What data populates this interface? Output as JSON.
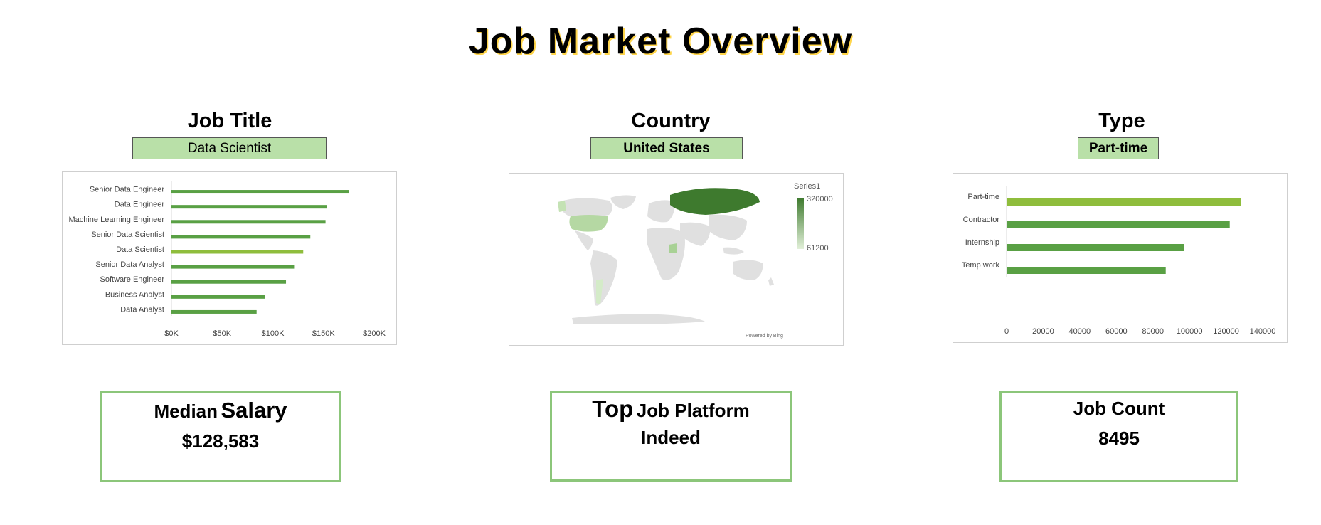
{
  "title": "Job Market Overview",
  "filters": {
    "job_title": {
      "heading": "Job Title",
      "selected": "Data Scientist"
    },
    "country": {
      "heading": "Country",
      "selected": "United States"
    },
    "type": {
      "heading": "Type",
      "selected": "Part-time"
    }
  },
  "colors": {
    "bar": "#59a044",
    "highlight": "#8fbd3c",
    "slicer_fill": "#b9e0a8",
    "kpi_border": "#8cc67a",
    "map_dark": "#3e7a2e",
    "map_light": "#e2f0d9",
    "land": "#e0e0e0"
  },
  "kpis": {
    "median_salary": {
      "label_small": "Median",
      "label_big": "Salary",
      "value": "$128,583"
    },
    "top_platform": {
      "label_big": "Top",
      "label_small": "Job Platform",
      "value": "Indeed"
    },
    "job_count": {
      "label": "Job Count",
      "value": "8495"
    }
  },
  "chart_data": [
    {
      "type": "bar",
      "orientation": "horizontal",
      "categories": [
        "Senior Data Engineer",
        "Data Engineer",
        "Machine Learning Engineer",
        "Senior Data Scientist",
        "Data Scientist",
        "Senior Data Analyst",
        "Software Engineer",
        "Business Analyst",
        "Data Analyst"
      ],
      "values": [
        175000,
        153000,
        152000,
        137000,
        130000,
        121000,
        113000,
        92000,
        84000
      ],
      "highlight": "Data Scientist",
      "ticks": [
        "$0K",
        "$50K",
        "$100K",
        "$150K",
        "$200K"
      ],
      "xlim": [
        0,
        200000
      ]
    },
    {
      "type": "map",
      "legend_title": "Series1",
      "legend_max": "320000",
      "legend_min": "61200",
      "credit": "Powered by Bing"
    },
    {
      "type": "bar",
      "orientation": "horizontal",
      "categories": [
        "Part-time",
        "Contractor",
        "Internship",
        "Temp work"
      ],
      "values": [
        128000,
        122000,
        97000,
        87000
      ],
      "highlight": "Part-time",
      "ticks": [
        "0",
        "20000",
        "40000",
        "60000",
        "80000",
        "100000",
        "120000",
        "140000"
      ],
      "xlim": [
        0,
        140000
      ]
    }
  ]
}
